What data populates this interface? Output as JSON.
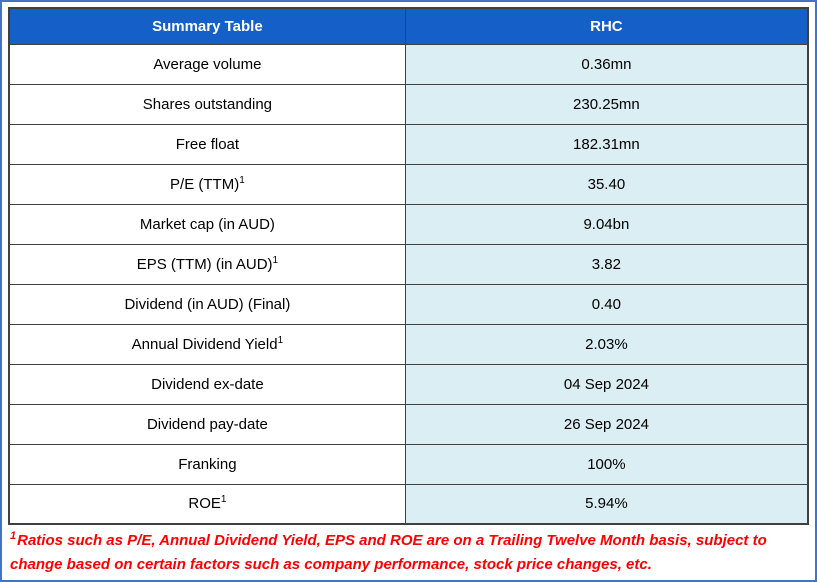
{
  "table": {
    "header": {
      "col1": "Summary Table",
      "col2": "RHC"
    },
    "rows": [
      {
        "label": "Average volume",
        "sup": "",
        "value": "0.36mn"
      },
      {
        "label": "Shares outstanding",
        "sup": "",
        "value": "230.25mn"
      },
      {
        "label": "Free float",
        "sup": "",
        "value": "182.31mn"
      },
      {
        "label": "P/E (TTM)",
        "sup": "1",
        "value": "35.40"
      },
      {
        "label": "Market cap (in AUD)",
        "sup": "",
        "value": "9.04bn"
      },
      {
        "label": "EPS (TTM) (in AUD)",
        "sup": "1",
        "value": "3.82"
      },
      {
        "label": "Dividend (in AUD) (Final)",
        "sup": "",
        "value": "0.40"
      },
      {
        "label": "Annual Dividend Yield",
        "sup": "1",
        "value": "2.03%"
      },
      {
        "label": "Dividend ex-date",
        "sup": "",
        "value": "04 Sep 2024"
      },
      {
        "label": "Dividend pay-date",
        "sup": "",
        "value": "26 Sep 2024"
      },
      {
        "label": "Franking",
        "sup": "",
        "value": "100%"
      },
      {
        "label": "ROE",
        "sup": "1",
        "value": "5.94%"
      }
    ]
  },
  "footnote": {
    "sup": "1",
    "text": "Ratios such as P/E, Annual Dividend Yield, EPS and ROE are on a Trailing Twelve Month basis, subject to change based on certain factors such as company performance, stock price changes, etc."
  },
  "chart_data": {
    "type": "table",
    "title": "Summary Table",
    "columns": [
      "Summary Table",
      "RHC"
    ],
    "rows": [
      [
        "Average volume",
        "0.36mn"
      ],
      [
        "Shares outstanding",
        "230.25mn"
      ],
      [
        "Free float",
        "182.31mn"
      ],
      [
        "P/E (TTM)1",
        "35.40"
      ],
      [
        "Market cap (in AUD)",
        "9.04bn"
      ],
      [
        "EPS (TTM) (in AUD)1",
        "3.82"
      ],
      [
        "Dividend (in AUD) (Final)",
        "0.40"
      ],
      [
        "Annual Dividend Yield1",
        "2.03%"
      ],
      [
        "Dividend ex-date",
        "04 Sep 2024"
      ],
      [
        "Dividend pay-date",
        "26 Sep 2024"
      ],
      [
        "Franking",
        "100%"
      ],
      [
        "ROE1",
        "5.94%"
      ]
    ]
  },
  "colors": {
    "header_bg": "#1560C8",
    "header_text": "#FFFFFF",
    "value_cell_bg": "#DAEEF3",
    "border": "#404040",
    "outer_border": "#4472C4",
    "footnote_color": "#FF0000"
  }
}
